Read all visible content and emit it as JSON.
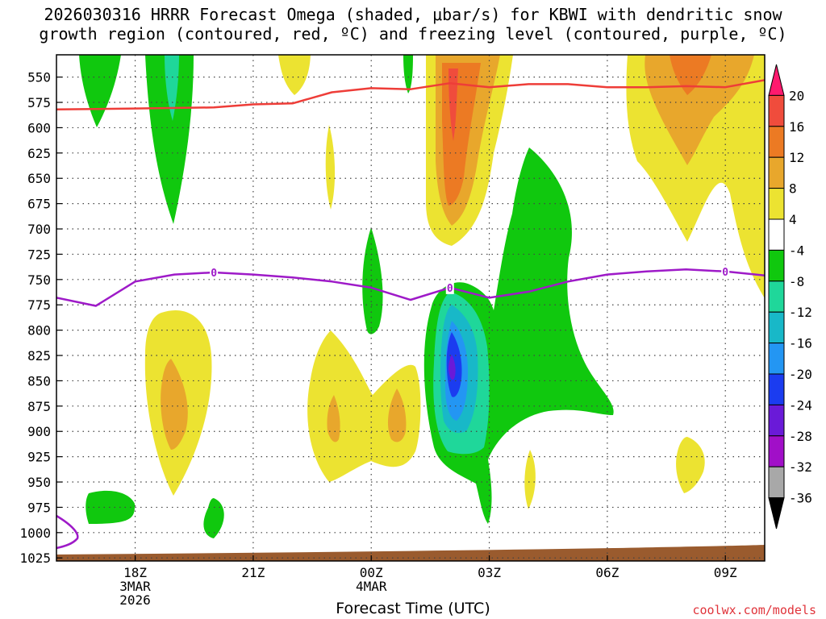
{
  "chart_data": {
    "type": "heatmap",
    "title_line1": "2026030316 HRRR Forecast Omega (shaded, μbar/s) for KBWI with dendritic snow",
    "title_line2": "growth region (contoured, red, ºC) and freezing level (contoured, purple, ºC)",
    "xlabel": "Forecast Time (UTC)",
    "x_ticks": [
      {
        "hour": 18,
        "lines": [
          "18Z",
          "3MAR",
          "2026"
        ]
      },
      {
        "hour": 21,
        "lines": [
          "21Z"
        ]
      },
      {
        "hour": 24,
        "lines": [
          "00Z",
          "4MAR"
        ]
      },
      {
        "hour": 27,
        "lines": [
          "03Z"
        ]
      },
      {
        "hour": 30,
        "lines": [
          "06Z"
        ]
      },
      {
        "hour": 33,
        "lines": [
          "09Z"
        ]
      }
    ],
    "x_range_hours": [
      16,
      34
    ],
    "y_axis": "pressure_hPa",
    "y_range_hPa": [
      528,
      1028
    ],
    "y_ticks": [
      550,
      575,
      600,
      625,
      650,
      675,
      700,
      725,
      750,
      775,
      800,
      825,
      850,
      875,
      900,
      925,
      950,
      975,
      1000,
      1025
    ],
    "colorbar": {
      "labels": [
        "20",
        "16",
        "12",
        "8",
        "4",
        "-4",
        "-8",
        "-12",
        "-16",
        "-20",
        "-24",
        "-28",
        "-32",
        "-36"
      ],
      "colors": [
        "#ff1a6e",
        "#f04c3c",
        "#ec7a23",
        "#e8a72c",
        "#ece331",
        "#ffffff",
        "#10c80e",
        "#1fd79a",
        "#18b8c8",
        "#2396f3",
        "#1b3cf0",
        "#6a1ad8",
        "#a10fc8",
        "#a8a8a8",
        "#000000"
      ]
    },
    "contours": {
      "freezing_level_label": "0",
      "freezing_level": [
        [
          16,
          768
        ],
        [
          17,
          776
        ],
        [
          18,
          752
        ],
        [
          19,
          745
        ],
        [
          20,
          743
        ],
        [
          21,
          745
        ],
        [
          22,
          748
        ],
        [
          23,
          752
        ],
        [
          24,
          758
        ],
        [
          25,
          770
        ],
        [
          26,
          758
        ],
        [
          27,
          768
        ],
        [
          28,
          762
        ],
        [
          29,
          752
        ],
        [
          30,
          745
        ],
        [
          31,
          742
        ],
        [
          32,
          740
        ],
        [
          33,
          742
        ],
        [
          34,
          746
        ]
      ],
      "dendritic_top": [
        [
          16,
          582
        ],
        [
          18,
          581
        ],
        [
          20,
          580
        ],
        [
          21,
          577
        ],
        [
          22,
          576
        ],
        [
          23,
          565
        ],
        [
          24,
          561
        ],
        [
          25,
          562
        ],
        [
          26,
          556
        ],
        [
          27,
          560
        ],
        [
          28,
          557
        ],
        [
          29,
          557
        ],
        [
          30,
          560
        ],
        [
          31,
          560
        ],
        [
          32,
          559
        ],
        [
          33,
          560
        ],
        [
          34,
          553
        ]
      ]
    }
  },
  "credit": "coolwx.com/models"
}
